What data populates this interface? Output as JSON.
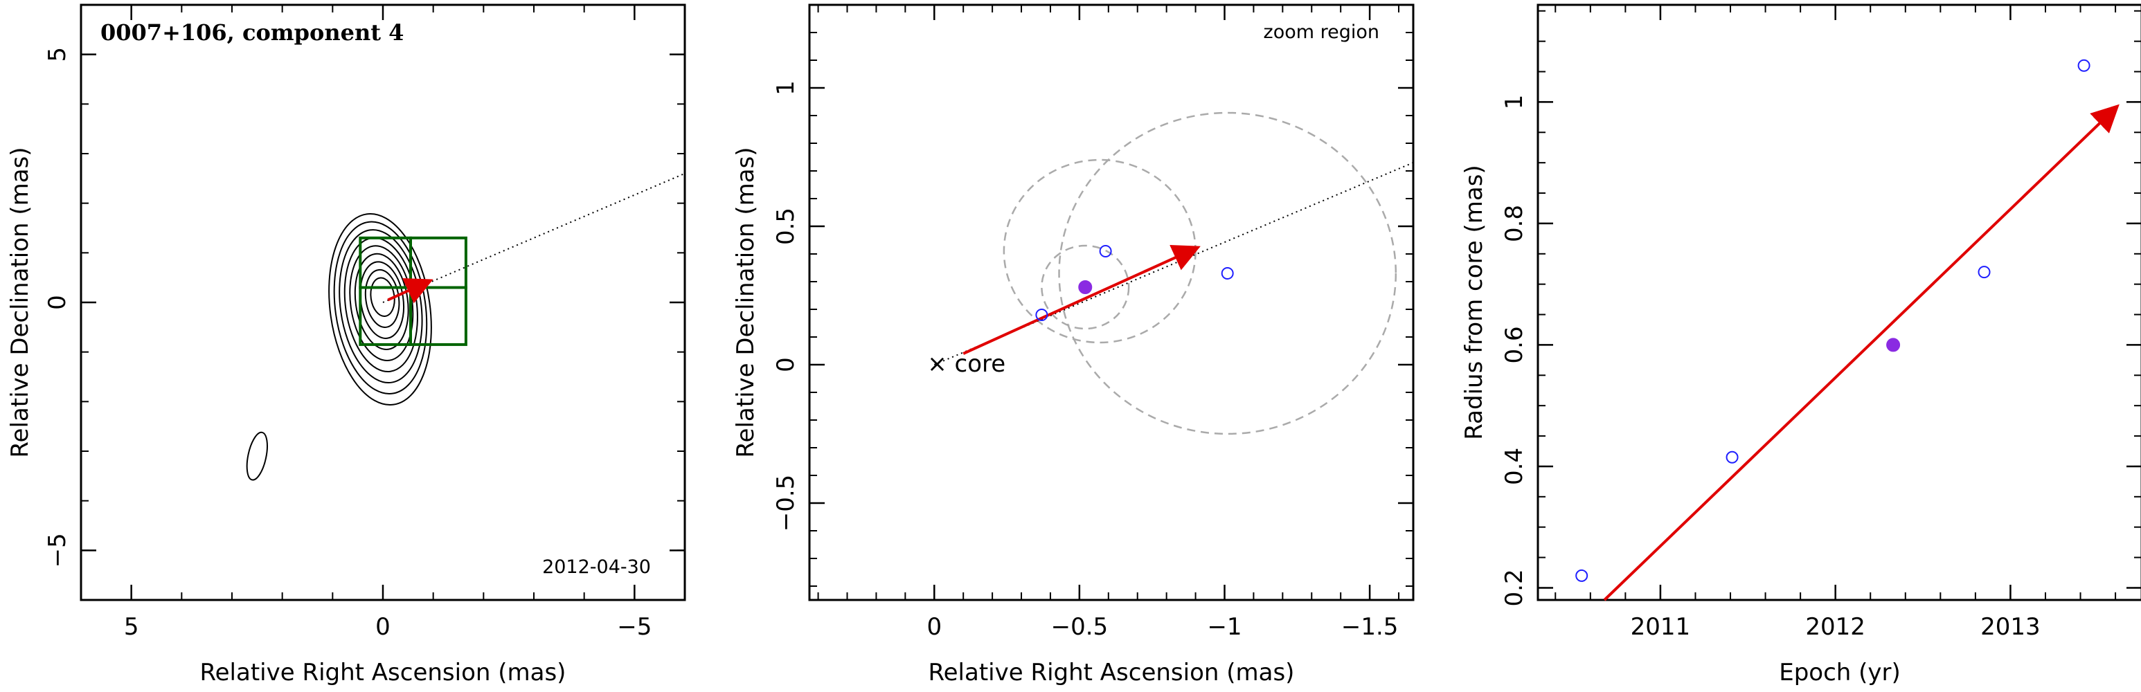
{
  "chart_data": [
    {
      "type": "contour",
      "title": "0007+106, component 4",
      "date_label": "2012-04-30",
      "xlabel": "Relative Right Ascension (mas)",
      "ylabel": "Relative Declination (mas)",
      "xlim": [
        6,
        -6
      ],
      "ylim": [
        -6,
        6
      ],
      "x_ticks": [
        5,
        0,
        -5
      ],
      "y_ticks": [
        5,
        0,
        -5
      ],
      "tick_labels_x": [
        "5",
        "0",
        "−5"
      ],
      "tick_labels_y": [
        "5",
        "0",
        "−5"
      ],
      "contour_center": [
        0.0,
        0.0
      ],
      "contour_levels": 9,
      "secondary_feature_center": [
        2.5,
        -3.1
      ],
      "boxes": [
        {
          "x": [
            0.45,
            -0.55
          ],
          "y": [
            0.3,
            1.3
          ]
        },
        {
          "x": [
            0.45,
            -0.55
          ],
          "y": [
            -0.85,
            0.3
          ]
        },
        {
          "x": [
            -0.55,
            -1.65
          ],
          "y": [
            0.3,
            1.3
          ]
        },
        {
          "x": [
            -0.55,
            -1.65
          ],
          "y": [
            -0.85,
            0.3
          ]
        }
      ],
      "velocity_vector": {
        "from": [
          -0.1,
          0.05
        ],
        "to": [
          -0.9,
          0.42
        ]
      },
      "position_angle_line": {
        "from": [
          0,
          0
        ],
        "to": [
          -6,
          2.6
        ]
      },
      "colors": {
        "contour": "#000000",
        "box": "#006400",
        "vector": "#e00000"
      }
    },
    {
      "type": "scatter",
      "title": "zoom region",
      "core_label": "× core",
      "xlabel": "Relative Right Ascension (mas)",
      "ylabel": "Relative Declination (mas)",
      "xlim": [
        0.43,
        -1.65
      ],
      "ylim": [
        -0.85,
        1.3
      ],
      "x_ticks": [
        0,
        -0.5,
        -1,
        -1.5
      ],
      "y_ticks": [
        -0.5,
        0,
        0.5,
        1
      ],
      "tick_labels_x": [
        "0",
        "−0.5",
        "−1",
        "−1.5"
      ],
      "tick_labels_y": [
        "−0.5",
        "0",
        "0.5",
        "1"
      ],
      "points": [
        {
          "x": -0.37,
          "y": 0.18,
          "filled": false
        },
        {
          "x": -0.59,
          "y": 0.41,
          "filled": false
        },
        {
          "x": -1.01,
          "y": 0.33,
          "filled": false
        },
        {
          "x": -0.52,
          "y": 0.28,
          "filled": true
        }
      ],
      "circles": [
        {
          "cx": -0.52,
          "cy": 0.28,
          "r": 0.15
        },
        {
          "cx": -0.57,
          "cy": 0.41,
          "r": 0.33
        },
        {
          "cx": -1.01,
          "cy": 0.33,
          "r": 0.58
        }
      ],
      "velocity_vector": {
        "from": [
          -0.1,
          0.04
        ],
        "to": [
          -0.9,
          0.42
        ]
      },
      "position_angle_line": {
        "from": [
          0,
          0
        ],
        "to": [
          -1.65,
          0.73
        ]
      },
      "colors": {
        "open_point": "#1f1fff",
        "filled_point": "#8a2be2",
        "circle": "#aaaaaa",
        "vector": "#e00000"
      }
    },
    {
      "type": "scatter",
      "xlabel": "Epoch (yr)",
      "ylabel": "Radius from core (mas)",
      "xlim": [
        2010.3,
        2013.75
      ],
      "ylim": [
        0.18,
        1.16
      ],
      "x_ticks": [
        2011,
        2012,
        2013
      ],
      "y_ticks": [
        0.2,
        0.4,
        0.6,
        0.8,
        1
      ],
      "tick_labels_x": [
        "2011",
        "2012",
        "2013"
      ],
      "tick_labels_y": [
        "0.2",
        "0.4",
        "0.6",
        "0.8",
        "1"
      ],
      "points": [
        {
          "x": 2010.55,
          "y": 0.22,
          "filled": false
        },
        {
          "x": 2011.41,
          "y": 0.415,
          "filled": false
        },
        {
          "x": 2012.33,
          "y": 0.6,
          "filled": true
        },
        {
          "x": 2012.85,
          "y": 0.72,
          "filled": false
        },
        {
          "x": 2013.42,
          "y": 1.06,
          "filled": false
        }
      ],
      "fit_line": {
        "from": [
          2010.68,
          0.18
        ],
        "to": [
          2013.6,
          0.99
        ]
      },
      "colors": {
        "open_point": "#1f1fff",
        "filled_point": "#8a2be2",
        "vector": "#e00000"
      }
    }
  ]
}
